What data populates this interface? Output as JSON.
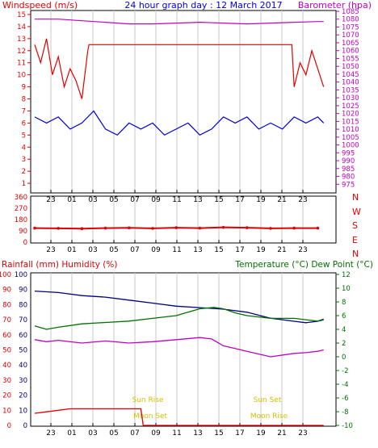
{
  "header": {
    "left_title": "Windspeed (m/s)",
    "center_title": "24 hour graph day : 12 March 2017",
    "right_title": "Barometer (hpa)"
  },
  "colors": {
    "background": "#ffffff",
    "frame": "#000000",
    "grid": "#c8c8c8",
    "wind_gust": "#e00000",
    "wind_avg": "#0000e0",
    "barometer": "#c000c0",
    "direction": "#e00000",
    "rain": "#e00000",
    "humidity": "#000080",
    "temperature": "#007000",
    "dewpoint": "#c000c0",
    "sun_moon": "#d4c000"
  },
  "chart_data": [
    {
      "type": "line",
      "title": "24 hour graph day : 12 March 2017",
      "x_ticks": [
        "23",
        "01",
        "03",
        "05",
        "07",
        "09",
        "11",
        "13",
        "15",
        "17",
        "19",
        "21",
        "23"
      ],
      "y_left_label": "Windspeed (m/s)",
      "y_left_range": [
        0,
        15
      ],
      "y_left_ticks": [
        0,
        1,
        2,
        3,
        4,
        5,
        6,
        7,
        8,
        9,
        10,
        11,
        12,
        13,
        14,
        15
      ],
      "y_right_label": "Barometer (hpa)",
      "y_right_range": [
        970,
        1085
      ],
      "y_right_ticks": [
        975,
        980,
        985,
        990,
        995,
        1000,
        1005,
        1010,
        1015,
        1020,
        1025,
        1030,
        1035,
        1040,
        1045,
        1050,
        1055,
        1060,
        1065,
        1070,
        1075,
        1080,
        1085
      ],
      "grid": "vertical",
      "series": [
        {
          "name": "Wind gust",
          "axis": "left",
          "color": "#e00000",
          "x": [
            0,
            0.5,
            1,
            1.5,
            2,
            2.5,
            3,
            3.5,
            4,
            4.5,
            4.6,
            21.8,
            22,
            22.5,
            23,
            23.5,
            24,
            24.5
          ],
          "y": [
            12.5,
            11,
            13,
            10,
            11.5,
            9,
            10.5,
            9.5,
            8,
            12,
            12.5,
            12.5,
            9,
            11,
            10,
            12,
            10.5,
            9
          ]
        },
        {
          "name": "Wind average",
          "axis": "left",
          "color": "#0000e0",
          "x": [
            0,
            1,
            2,
            3,
            4,
            5,
            6,
            7,
            8,
            9,
            10,
            11,
            12,
            13,
            14,
            15,
            16,
            17,
            18,
            19,
            20,
            21,
            22,
            23,
            24,
            24.5
          ],
          "y": [
            6.5,
            6,
            6.5,
            5.5,
            6,
            7,
            5.5,
            5,
            6,
            5.5,
            6,
            5,
            5.5,
            6,
            5,
            5.5,
            6.5,
            6,
            6.5,
            5.5,
            6,
            5.5,
            6.5,
            6,
            6.5,
            6
          ]
        },
        {
          "name": "Barometer",
          "axis": "right",
          "color": "#c000c0",
          "x": [
            0,
            2,
            4,
            6,
            8,
            10,
            12,
            14,
            16,
            18,
            20,
            22,
            24,
            24.5
          ],
          "y": [
            1080,
            1080,
            1079,
            1078,
            1077,
            1077,
            1077.5,
            1078,
            1077.5,
            1077,
            1077.5,
            1078,
            1078.5,
            1078.5
          ]
        }
      ]
    },
    {
      "type": "scatter",
      "y_left_range": [
        0,
        360
      ],
      "y_left_ticks": [
        0,
        90,
        180,
        270,
        360
      ],
      "y_right_ticks": [
        "N",
        "E",
        "S",
        "W",
        "N"
      ],
      "x_ticks": [
        "23",
        "01",
        "03",
        "05",
        "07",
        "09",
        "11",
        "13",
        "15",
        "17",
        "19",
        "21",
        "23"
      ],
      "series": [
        {
          "name": "Wind direction",
          "color": "#e00000",
          "x": [
            0,
            2,
            4,
            6,
            8,
            10,
            12,
            14,
            16,
            18,
            20,
            22,
            24
          ],
          "y": [
            112,
            110,
            108,
            112,
            114,
            110,
            115,
            112,
            118,
            115,
            110,
            112,
            112
          ]
        }
      ]
    },
    {
      "type": "line",
      "x_ticks": [
        "23",
        "01",
        "03",
        "05",
        "07",
        "09",
        "11",
        "13",
        "15",
        "17",
        "19",
        "21",
        "23"
      ],
      "y_left_label": "Rainfall (mm)  Humidity (%)",
      "y_left_ranges": [
        [
          0,
          100
        ],
        [
          0,
          100
        ]
      ],
      "y_left_ticks": [
        0,
        10,
        20,
        30,
        40,
        50,
        60,
        70,
        80,
        90,
        100
      ],
      "y_right_label": "Temperature (°C) Dew Point (°C)",
      "y_right_range": [
        -10,
        12
      ],
      "y_right_ticks": [
        -10,
        -8,
        -6,
        -4,
        -2,
        0,
        2,
        4,
        6,
        8,
        10,
        12
      ],
      "annotations": [
        "Sun Rise",
        "Moon Set",
        "Sun Set",
        "Moon Rise"
      ],
      "series": [
        {
          "name": "Rainfall",
          "axis": "left",
          "color": "#e00000",
          "x": [
            0,
            1,
            2,
            3,
            4,
            5,
            6,
            7,
            8,
            9,
            9.2,
            12,
            16,
            20,
            24,
            24.5
          ],
          "y": [
            8,
            9,
            10,
            11,
            11,
            11,
            11,
            11,
            11,
            11,
            0,
            0,
            0,
            0,
            0,
            0
          ]
        },
        {
          "name": "Humidity",
          "axis": "left",
          "color": "#000080",
          "x": [
            0,
            2,
            4,
            6,
            8,
            10,
            12,
            14,
            16,
            18,
            19,
            20,
            22,
            23,
            24,
            24.5
          ],
          "y": [
            89,
            88,
            86,
            85,
            83,
            81,
            79,
            78,
            77,
            75,
            73,
            71,
            69,
            68,
            69,
            70
          ]
        },
        {
          "name": "Temperature",
          "axis": "right",
          "color": "#007000",
          "x": [
            0,
            1,
            2,
            4,
            6,
            8,
            10,
            12,
            14,
            15.2,
            16,
            17,
            18,
            20,
            22,
            24,
            24.5
          ],
          "y": [
            4.5,
            4,
            4.3,
            4.8,
            5,
            5.2,
            5.6,
            6,
            7,
            7.2,
            7,
            6.4,
            6,
            5.6,
            5.6,
            5.2,
            5.5
          ]
        },
        {
          "name": "Dew Point",
          "axis": "right",
          "color": "#c000c0",
          "x": [
            0,
            1,
            2,
            4,
            6,
            8,
            10,
            12,
            14,
            15,
            16,
            17,
            18,
            20,
            22,
            23,
            24,
            24.5
          ],
          "y": [
            2.5,
            2.2,
            2.4,
            2,
            2.3,
            2,
            2.2,
            2.5,
            2.8,
            2.6,
            1.6,
            1.2,
            0.8,
            0,
            0.5,
            0.6,
            0.8,
            1
          ]
        }
      ]
    }
  ]
}
